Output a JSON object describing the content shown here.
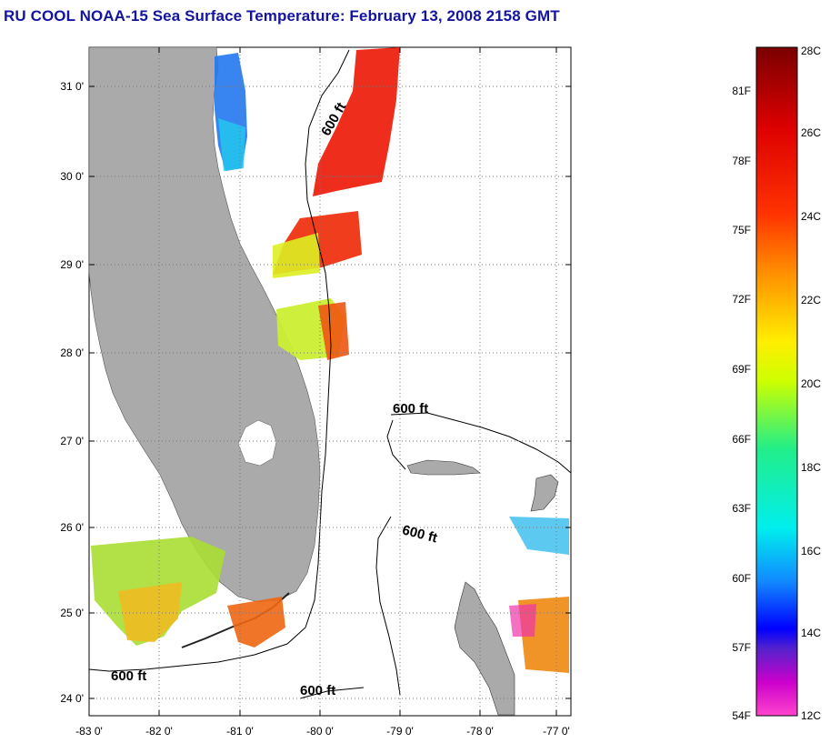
{
  "title": "RU COOL  NOAA-15  Sea Surface Temperature:  February 13, 2008 2158 GMT",
  "map": {
    "lat_ticks": [
      "31 0'",
      "30 0'",
      "29 0'",
      "28 0'",
      "27 0'",
      "26 0'",
      "25 0'",
      "24 0'"
    ],
    "lon_ticks": [
      "-83 0'",
      "-82 0'",
      "-81 0'",
      "-80 0'",
      "-79 0'",
      "-78 0'",
      "-77 0'"
    ],
    "contour_labels": [
      "600 ft",
      "600 ft",
      "600 ft",
      "600 ft",
      "600 ft"
    ],
    "land_color": "#aaaaaa"
  },
  "colorbar": {
    "celsius_labels": [
      "28C",
      "26C",
      "24C",
      "22C",
      "20C",
      "18C",
      "16C",
      "14C",
      "12C"
    ],
    "fahrenheit_labels": [
      "81F",
      "78F",
      "75F",
      "72F",
      "69F",
      "66F",
      "63F",
      "60F",
      "57F",
      "54F"
    ],
    "range_c": [
      12,
      28
    ]
  }
}
